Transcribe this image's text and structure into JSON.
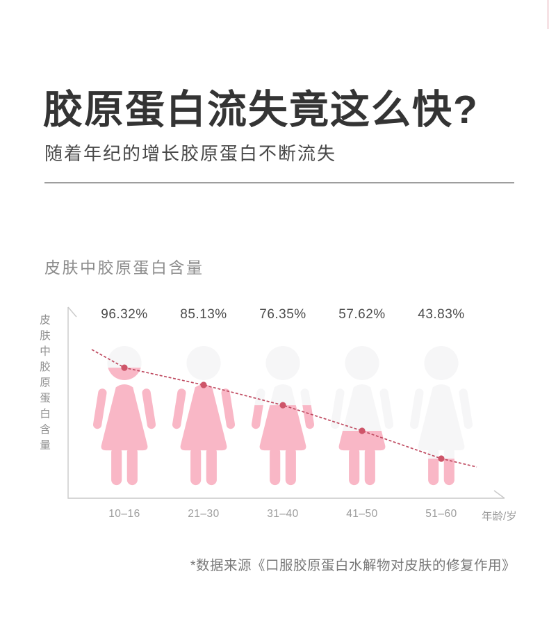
{
  "header": {
    "title": "胶原蛋白流失竟这么快?",
    "subtitle": "随着年纪的增长胶原蛋白不断流失"
  },
  "chart": {
    "section_title": "皮肤中胶原蛋白含量",
    "footnote": "*数据来源《口服胶原蛋白水解物对皮肤的修复作用》"
  },
  "chart_data": {
    "type": "line",
    "subtype": "pictograph-trend",
    "title": "皮肤中胶原蛋白含量",
    "categories": [
      "10–16",
      "21–30",
      "31–40",
      "41–50",
      "51–60"
    ],
    "values": [
      96.32,
      85.13,
      76.35,
      57.62,
      43.83
    ],
    "value_labels": [
      "96.32%",
      "85.13%",
      "76.35%",
      "57.62%",
      "43.83%"
    ],
    "xlabel": "年龄/岁",
    "ylabel": "皮肤中胶原蛋白含量",
    "ylim": [
      0,
      100
    ],
    "grid": false,
    "legend": "none",
    "trend": "decreasing dashed line with round markers over five female figures filled pink proportionally to collagen content",
    "fill_fractions": [
      0.842,
      0.719,
      0.576,
      0.394,
      0.197
    ],
    "colors": {
      "figure_fill": "#f9b7c6",
      "figure_empty": "#f6f6f7",
      "trend_line": "#bf4a60",
      "marker": "#ce5569",
      "axis": "#c9c9c9"
    }
  }
}
